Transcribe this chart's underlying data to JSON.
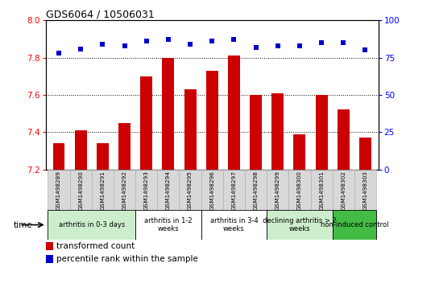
{
  "title": "GDS6064 / 10506031",
  "samples": [
    "GSM1498289",
    "GSM1498290",
    "GSM1498291",
    "GSM1498292",
    "GSM1498293",
    "GSM1498294",
    "GSM1498295",
    "GSM1498296",
    "GSM1498297",
    "GSM1498298",
    "GSM1498299",
    "GSM1498300",
    "GSM1498301",
    "GSM1498302",
    "GSM1498303"
  ],
  "bar_values": [
    7.34,
    7.41,
    7.34,
    7.45,
    7.7,
    7.8,
    7.63,
    7.73,
    7.81,
    7.6,
    7.61,
    7.39,
    7.6,
    7.52,
    7.37
  ],
  "dot_values": [
    78,
    81,
    84,
    83,
    86,
    87,
    84,
    86,
    87,
    82,
    83,
    83,
    85,
    85,
    80
  ],
  "ylim_left": [
    7.2,
    8.0
  ],
  "ylim_right": [
    0,
    100
  ],
  "yticks_left": [
    7.2,
    7.4,
    7.6,
    7.8,
    8.0
  ],
  "yticks_right": [
    0,
    25,
    50,
    75,
    100
  ],
  "bar_color": "#cc0000",
  "dot_color": "#0000cc",
  "bar_bottom": 7.2,
  "groups": [
    {
      "label": "arthritis in 0-3 days",
      "indices": [
        0,
        1,
        2,
        3
      ],
      "color": "#cceecc"
    },
    {
      "label": "arthritis in 1-2\nweeks",
      "indices": [
        4,
        5,
        6
      ],
      "color": "#ffffff"
    },
    {
      "label": "arthritis in 3-4\nweeks",
      "indices": [
        7,
        8,
        9
      ],
      "color": "#ffffff"
    },
    {
      "label": "declining arthritis > 2\nweeks",
      "indices": [
        10,
        11,
        12
      ],
      "color": "#cceecc"
    },
    {
      "label": "non-induced control",
      "indices": [
        13,
        14
      ],
      "color": "#44bb44"
    }
  ],
  "legend_bar_label": "transformed count",
  "legend_dot_label": "percentile rank within the sample",
  "dotted_lines": [
    7.4,
    7.6,
    7.8
  ]
}
